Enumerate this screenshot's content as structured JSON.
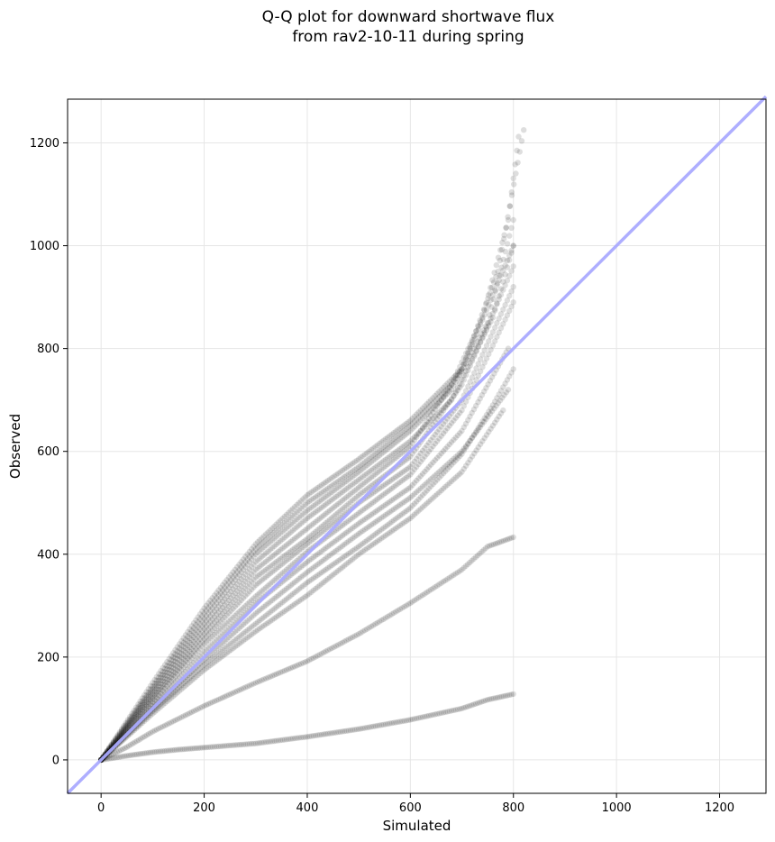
{
  "chart_data": {
    "type": "scatter",
    "title_lines": [
      "Q-Q plot for downward shortwave flux",
      "from rav2-10-11 during spring"
    ],
    "xlabel": "Simulated",
    "ylabel": "Observed",
    "xlim": [
      -65,
      1290
    ],
    "ylim": [
      -65,
      1285
    ],
    "xticks": [
      0,
      200,
      400,
      600,
      800,
      1000,
      1200
    ],
    "yticks": [
      0,
      200,
      400,
      600,
      800,
      1000,
      1200
    ],
    "grid": true,
    "point_color": "#000000",
    "point_opacity": 0.13,
    "reference_line": {
      "label": "1:1 line",
      "color": "#aaaaff",
      "from": [
        -65,
        -65
      ],
      "to": [
        1290,
        1290
      ]
    },
    "series": [
      {
        "values": [
          [
            0,
            0
          ],
          [
            50,
            8
          ],
          [
            100,
            15
          ],
          [
            150,
            20
          ],
          [
            200,
            24
          ],
          [
            300,
            32
          ],
          [
            400,
            45
          ],
          [
            500,
            60
          ],
          [
            600,
            78
          ],
          [
            700,
            100
          ],
          [
            750,
            117
          ],
          [
            800,
            128
          ]
        ]
      },
      {
        "values": [
          [
            0,
            0
          ],
          [
            50,
            25
          ],
          [
            100,
            55
          ],
          [
            200,
            105
          ],
          [
            300,
            150
          ],
          [
            400,
            192
          ],
          [
            500,
            245
          ],
          [
            600,
            305
          ],
          [
            700,
            370
          ],
          [
            750,
            415
          ],
          [
            800,
            433
          ]
        ]
      },
      {
        "values": [
          [
            0,
            0
          ],
          [
            100,
            95
          ],
          [
            200,
            185
          ],
          [
            300,
            265
          ],
          [
            400,
            345
          ],
          [
            500,
            415
          ],
          [
            600,
            490
          ],
          [
            700,
            595
          ],
          [
            760,
            690
          ],
          [
            800,
            760
          ]
        ]
      },
      {
        "values": [
          [
            0,
            0
          ],
          [
            100,
            105
          ],
          [
            200,
            210
          ],
          [
            300,
            305
          ],
          [
            400,
            385
          ],
          [
            500,
            460
          ],
          [
            600,
            530
          ],
          [
            700,
            640
          ],
          [
            790,
            800
          ]
        ]
      },
      {
        "values": [
          [
            0,
            0
          ],
          [
            100,
            112
          ],
          [
            200,
            225
          ],
          [
            300,
            318
          ],
          [
            400,
            405
          ],
          [
            500,
            480
          ],
          [
            600,
            555
          ],
          [
            700,
            680
          ],
          [
            800,
            890
          ]
        ]
      },
      {
        "values": [
          [
            0,
            0
          ],
          [
            100,
            118
          ],
          [
            200,
            235
          ],
          [
            300,
            340
          ],
          [
            400,
            420
          ],
          [
            500,
            500
          ],
          [
            600,
            570
          ],
          [
            700,
            700
          ],
          [
            800,
            920
          ]
        ]
      },
      {
        "values": [
          [
            0,
            0
          ],
          [
            100,
            122
          ],
          [
            200,
            245
          ],
          [
            300,
            355
          ],
          [
            400,
            430
          ],
          [
            500,
            515
          ],
          [
            600,
            590
          ],
          [
            700,
            730
          ],
          [
            800,
            960
          ]
        ]
      },
      {
        "values": [
          [
            0,
            0
          ],
          [
            100,
            128
          ],
          [
            200,
            255
          ],
          [
            300,
            370
          ],
          [
            400,
            450
          ],
          [
            500,
            530
          ],
          [
            600,
            610
          ],
          [
            700,
            760
          ],
          [
            800,
            1000
          ]
        ]
      },
      {
        "values": [
          [
            0,
            0
          ],
          [
            100,
            133
          ],
          [
            200,
            265
          ],
          [
            300,
            385
          ],
          [
            400,
            470
          ],
          [
            500,
            545
          ],
          [
            600,
            620
          ],
          [
            680,
            700
          ],
          [
            760,
            860
          ],
          [
            800,
            1000
          ]
        ]
      },
      {
        "values": [
          [
            0,
            0
          ],
          [
            100,
            138
          ],
          [
            200,
            275
          ],
          [
            300,
            400
          ],
          [
            400,
            485
          ],
          [
            500,
            560
          ],
          [
            600,
            640
          ],
          [
            680,
            720
          ],
          [
            750,
            850
          ],
          [
            800,
            1050
          ]
        ]
      },
      {
        "values": [
          [
            0,
            0
          ],
          [
            100,
            143
          ],
          [
            200,
            285
          ],
          [
            300,
            410
          ],
          [
            400,
            500
          ],
          [
            500,
            570
          ],
          [
            600,
            650
          ],
          [
            680,
            730
          ],
          [
            740,
            860
          ],
          [
            790,
            1050
          ],
          [
            810,
            1212
          ]
        ]
      },
      {
        "values": [
          [
            0,
            0
          ],
          [
            100,
            150
          ],
          [
            200,
            295
          ],
          [
            300,
            420
          ],
          [
            400,
            515
          ],
          [
            500,
            585
          ],
          [
            600,
            660
          ],
          [
            700,
            760
          ],
          [
            770,
            950
          ],
          [
            820,
            1225
          ]
        ]
      },
      {
        "values": [
          [
            0,
            0
          ],
          [
            100,
            90
          ],
          [
            200,
            175
          ],
          [
            300,
            250
          ],
          [
            400,
            320
          ],
          [
            500,
            400
          ],
          [
            600,
            470
          ],
          [
            700,
            560
          ],
          [
            780,
            680
          ]
        ]
      },
      {
        "values": [
          [
            0,
            0
          ],
          [
            100,
            100
          ],
          [
            200,
            195
          ],
          [
            300,
            285
          ],
          [
            400,
            365
          ],
          [
            500,
            440
          ],
          [
            600,
            510
          ],
          [
            700,
            600
          ],
          [
            790,
            720
          ]
        ]
      }
    ]
  }
}
